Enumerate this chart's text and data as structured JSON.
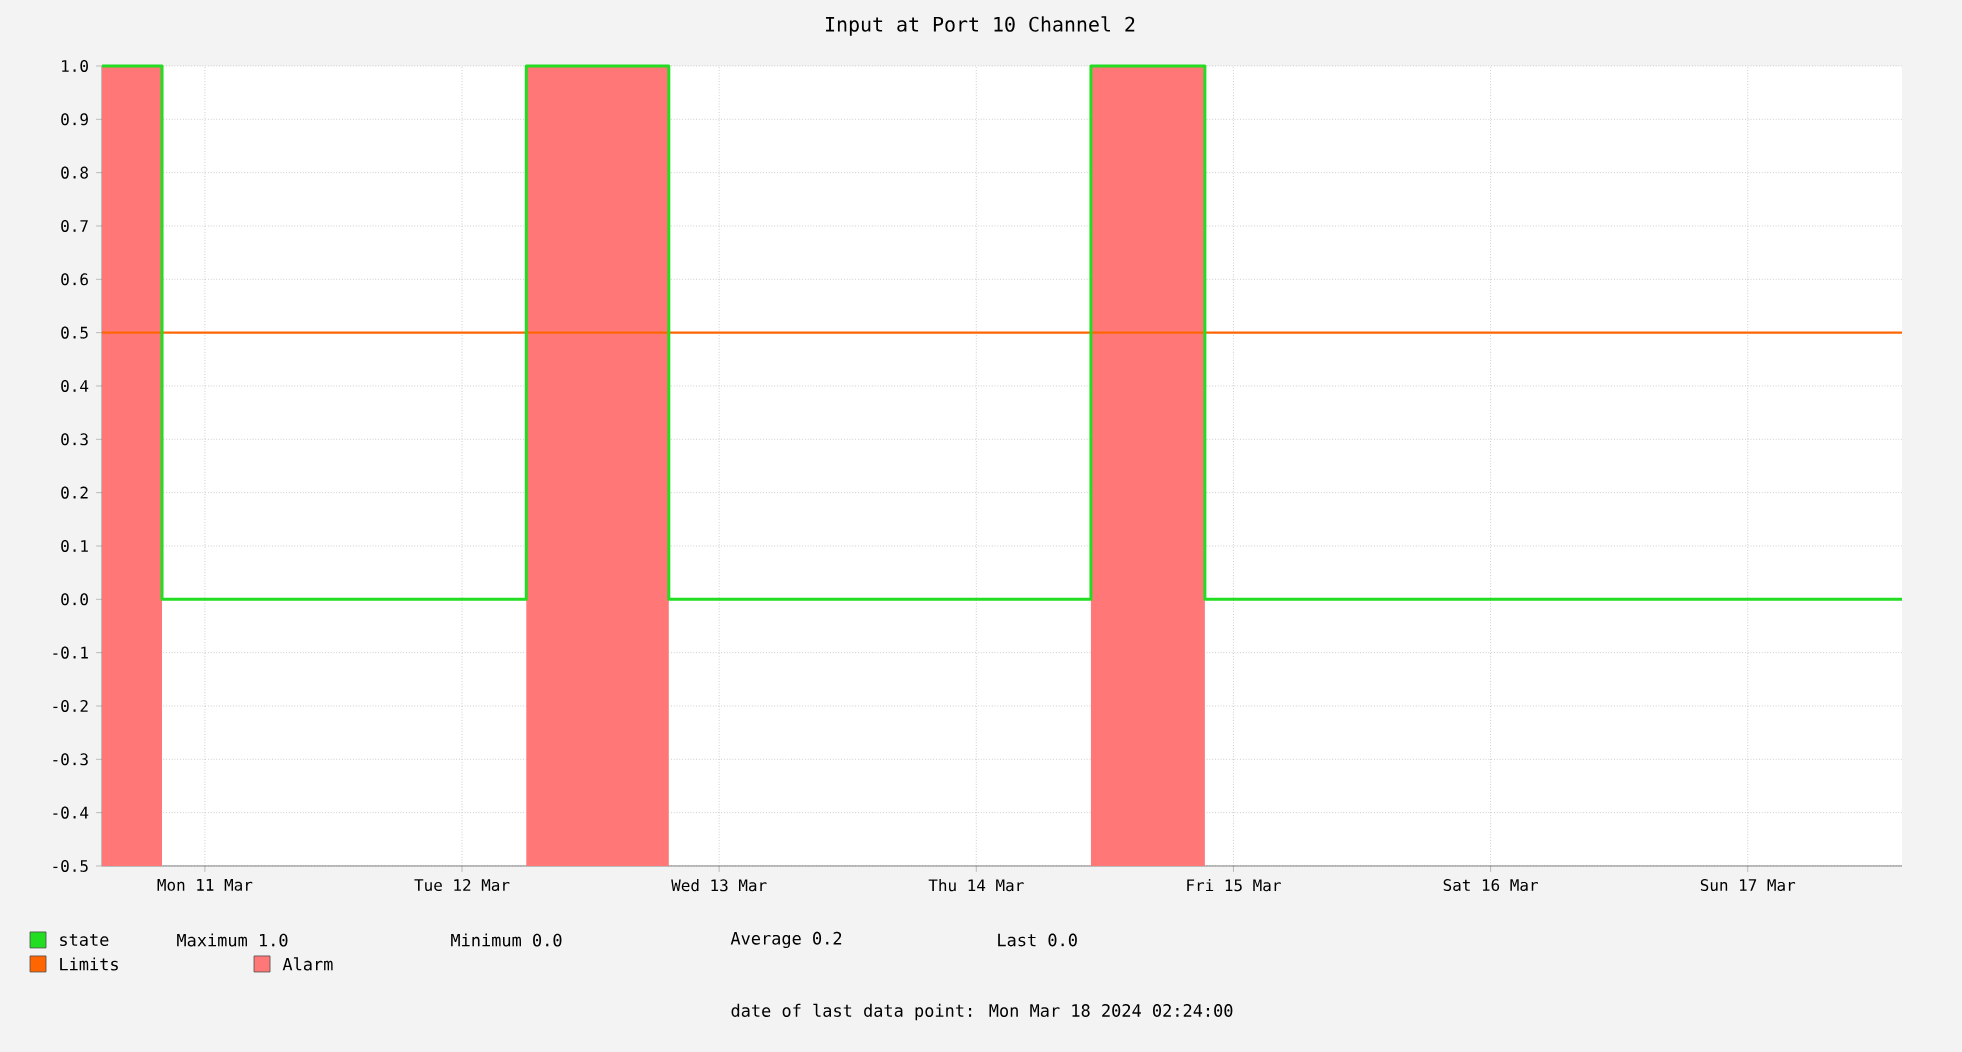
{
  "chart_data": {
    "type": "step",
    "title": "Input at Port 10 Channel 2",
    "xlim": [
      "2024-03-11T02:24",
      "2024-03-18T02:24"
    ],
    "xticks": [
      {
        "value": "2024-03-11T12:00",
        "label": "Mon 11 Mar"
      },
      {
        "value": "2024-03-12T12:00",
        "label": "Tue 12 Mar"
      },
      {
        "value": "2024-03-13T12:00",
        "label": "Wed 13 Mar"
      },
      {
        "value": "2024-03-14T12:00",
        "label": "Thu 14 Mar"
      },
      {
        "value": "2024-03-15T12:00",
        "label": "Fri 15 Mar"
      },
      {
        "value": "2024-03-16T12:00",
        "label": "Sat 16 Mar"
      },
      {
        "value": "2024-03-17T12:00",
        "label": "Sun 17 Mar"
      }
    ],
    "ylim": [
      -0.5,
      1.0
    ],
    "yticks": [
      -0.5,
      -0.4,
      -0.3,
      -0.2,
      -0.1,
      {
        "value": 0,
        "label": "0.0"
      },
      0.1,
      0.2,
      0.3,
      0.4,
      0.5,
      0.6,
      0.7,
      0.8,
      0.9,
      {
        "value": 1,
        "label": "1.0"
      }
    ],
    "grid": true,
    "legend": "bottom",
    "marker": "none",
    "series": [
      {
        "name": "Alarm",
        "type": "area",
        "color": "#ff7777",
        "x": [
          "2024-03-11T02:24",
          "2024-03-11T02:24",
          "2024-03-11T08:00",
          "2024-03-11T08:00",
          "2024-03-12T18:00",
          "2024-03-12T18:00",
          "2024-03-13T07:18",
          "2024-03-13T07:18",
          "2024-03-14T22:42",
          "2024-03-14T22:42",
          "2024-03-15T09:20",
          "2024-03-15T09:20",
          "2024-03-18T02:24"
        ],
        "values": [
          -0.5,
          1,
          1,
          -0.5,
          -0.5,
          1,
          1,
          -0.5,
          -0.5,
          1,
          1,
          -0.5,
          -0.5
        ]
      },
      {
        "name": "state",
        "color": "#22dd22",
        "x": [
          "2024-03-11T02:24",
          "2024-03-11T08:00",
          "2024-03-12T18:00",
          "2024-03-13T07:18",
          "2024-03-14T22:42",
          "2024-03-15T09:20",
          "2024-03-18T02:24"
        ],
        "values": [
          1,
          0,
          1,
          0,
          1,
          0,
          0
        ]
      }
    ],
    "ref_lines": [
      {
        "axis": "y",
        "value": 0.5,
        "label": "Limits",
        "color": "#ff6600"
      }
    ],
    "annotations": [
      "Maximum  1.0",
      "Minimum  0.0",
      "Average  0.2",
      "Last  0.0",
      "date of last data point:  Mon Mar 18 2024 02:24:00"
    ]
  }
}
